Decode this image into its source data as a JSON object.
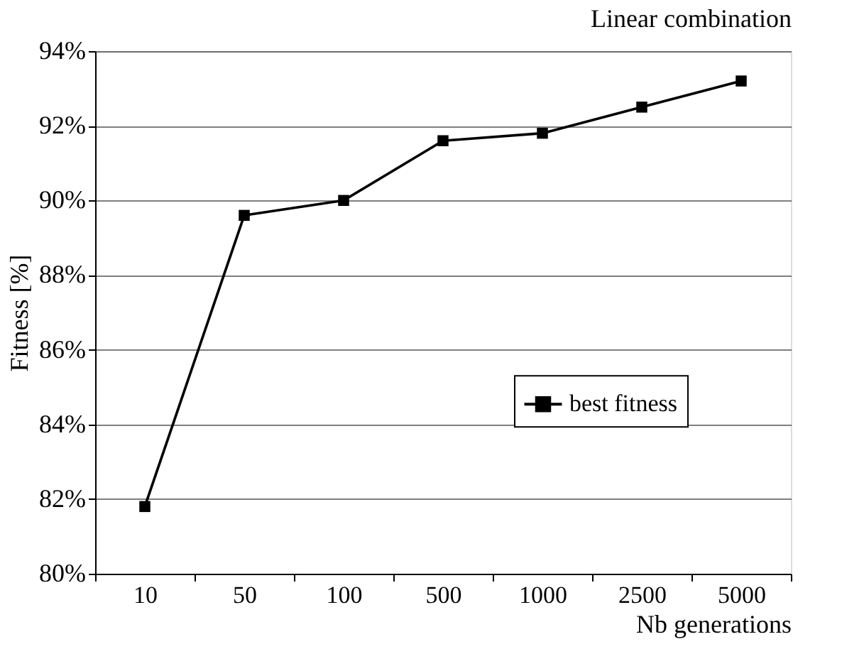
{
  "chart_data": {
    "type": "line",
    "title": "Linear combination",
    "xlabel": "Nb generations",
    "ylabel": "Fitness [%]",
    "categories": [
      "10",
      "50",
      "100",
      "500",
      "1000",
      "2500",
      "5000"
    ],
    "series": [
      {
        "name": "best fitness",
        "color": "#000000",
        "values": [
          81.8,
          89.6,
          90.0,
          91.6,
          91.8,
          92.5,
          93.2
        ]
      }
    ],
    "ylim": [
      80,
      94
    ],
    "yticks": [
      {
        "value": 80,
        "label": "80%"
      },
      {
        "value": 82,
        "label": "82%"
      },
      {
        "value": 84,
        "label": "84%"
      },
      {
        "value": 86,
        "label": "86%"
      },
      {
        "value": 88,
        "label": "88%"
      },
      {
        "value": 90,
        "label": "90%"
      },
      {
        "value": 92,
        "label": "92%"
      },
      {
        "value": 94,
        "label": "94%"
      }
    ],
    "grid": "y",
    "legend": "right",
    "marker": "square",
    "line_style": "solid"
  }
}
